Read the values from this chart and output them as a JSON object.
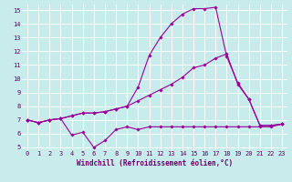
{
  "title": "",
  "xlabel": "Windchill (Refroidissement éolien,°C)",
  "background_color": "#c8ecec",
  "grid_color": "#ffffff",
  "line_color": "#990099",
  "label_color": "#660066",
  "xlim": [
    -0.5,
    23.5
  ],
  "ylim": [
    4.8,
    15.4
  ],
  "xticks": [
    0,
    1,
    2,
    3,
    4,
    5,
    6,
    7,
    8,
    9,
    10,
    11,
    12,
    13,
    14,
    15,
    16,
    17,
    18,
    19,
    20,
    21,
    22,
    23
  ],
  "yticks": [
    5,
    6,
    7,
    8,
    9,
    10,
    11,
    12,
    13,
    14,
    15
  ],
  "line1_x": [
    0,
    1,
    2,
    3,
    4,
    5,
    6,
    7,
    8,
    9,
    10,
    11,
    12,
    13,
    14,
    15,
    16,
    17,
    18,
    19,
    20,
    21,
    22,
    23
  ],
  "line1_y": [
    7.0,
    6.8,
    7.0,
    7.1,
    5.9,
    6.1,
    5.0,
    5.5,
    6.3,
    6.5,
    6.3,
    6.5,
    6.5,
    6.5,
    6.5,
    6.5,
    6.5,
    6.5,
    6.5,
    6.5,
    6.5,
    6.5,
    6.5,
    6.7
  ],
  "line2_x": [
    0,
    1,
    2,
    3,
    4,
    5,
    6,
    7,
    8,
    9,
    10,
    11,
    12,
    13,
    14,
    15,
    16,
    17,
    18,
    19,
    20,
    21,
    22,
    23
  ],
  "line2_y": [
    7.0,
    6.8,
    7.0,
    7.1,
    7.3,
    7.5,
    7.5,
    7.6,
    7.8,
    8.0,
    8.4,
    8.8,
    9.2,
    9.6,
    10.1,
    10.8,
    11.0,
    11.5,
    11.8,
    9.6,
    8.5,
    6.6,
    6.6,
    6.7
  ],
  "line3_x": [
    0,
    1,
    2,
    3,
    4,
    5,
    6,
    7,
    8,
    9,
    10,
    11,
    12,
    13,
    14,
    15,
    16,
    17,
    18,
    19,
    20,
    21,
    22,
    23
  ],
  "line3_y": [
    7.0,
    6.8,
    7.0,
    7.1,
    7.3,
    7.5,
    7.5,
    7.6,
    7.8,
    8.0,
    9.4,
    11.7,
    13.0,
    14.0,
    14.7,
    15.1,
    15.1,
    15.2,
    11.6,
    9.7,
    8.5,
    6.6,
    6.6,
    6.7
  ],
  "marker": "D",
  "markersize": 1.8,
  "linewidth": 0.8,
  "tick_fontsize": 5.0,
  "xlabel_fontsize": 5.5
}
